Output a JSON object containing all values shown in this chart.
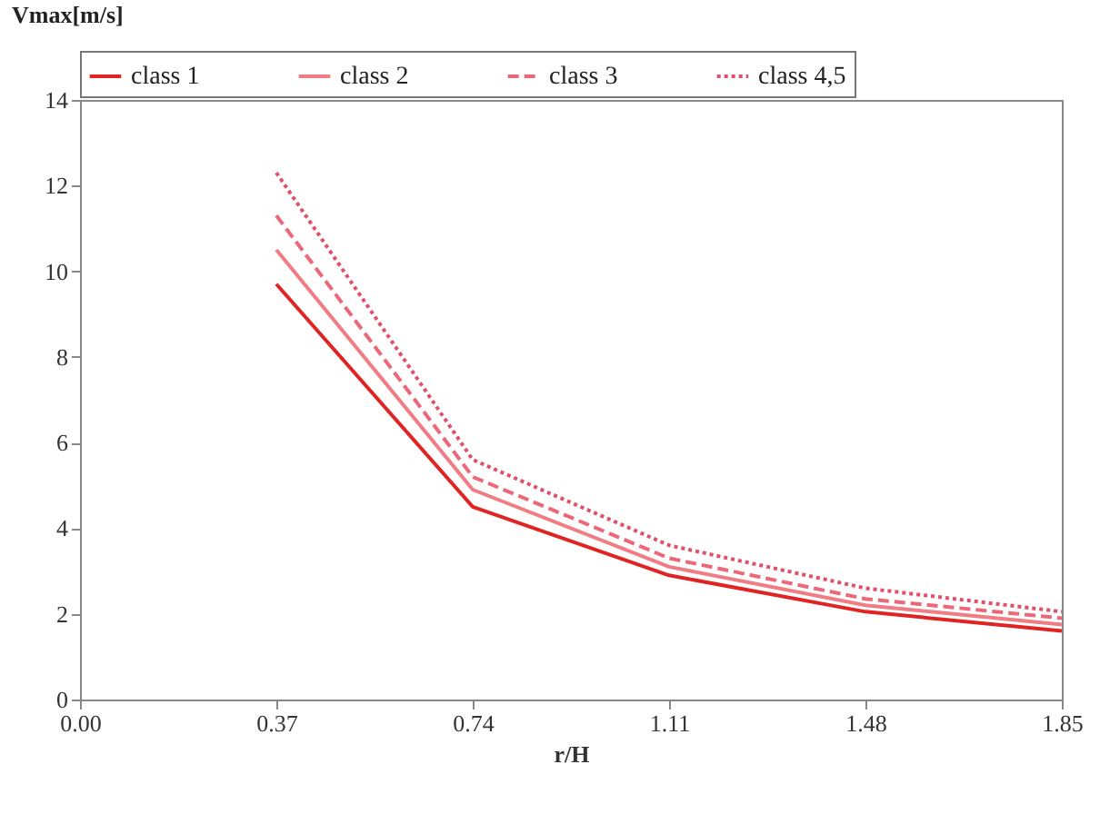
{
  "chart_data": {
    "type": "line",
    "ylabel": "Vmax[m/s]",
    "xlabel": "r/H",
    "x": [
      0.37,
      0.74,
      1.11,
      1.48,
      1.85
    ],
    "series": [
      {
        "name": "class 1",
        "color": "#e02424",
        "line_style": "solid",
        "values": [
          9.7,
          4.5,
          2.9,
          2.05,
          1.6
        ]
      },
      {
        "name": "class 2",
        "color": "#f07c84",
        "line_style": "solid",
        "values": [
          10.5,
          4.9,
          3.1,
          2.2,
          1.75
        ]
      },
      {
        "name": "class 3",
        "color": "#ec6878",
        "line_style": "dashed",
        "values": [
          11.3,
          5.2,
          3.3,
          2.35,
          1.9
        ]
      },
      {
        "name": "class 4,5",
        "color": "#e0506a",
        "line_style": "dotted",
        "values": [
          12.3,
          5.6,
          3.6,
          2.6,
          2.05
        ]
      }
    ],
    "xlim": [
      0,
      1.85
    ],
    "xticks": [
      {
        "value": 0,
        "label": "0.00"
      },
      0.37,
      0.74,
      1.11,
      1.48,
      1.85
    ],
    "ylim": [
      0,
      14
    ],
    "yticks": [
      0,
      2,
      4,
      6,
      8,
      10,
      12,
      14
    ],
    "grid": false,
    "legend": "top",
    "marker": "none"
  }
}
